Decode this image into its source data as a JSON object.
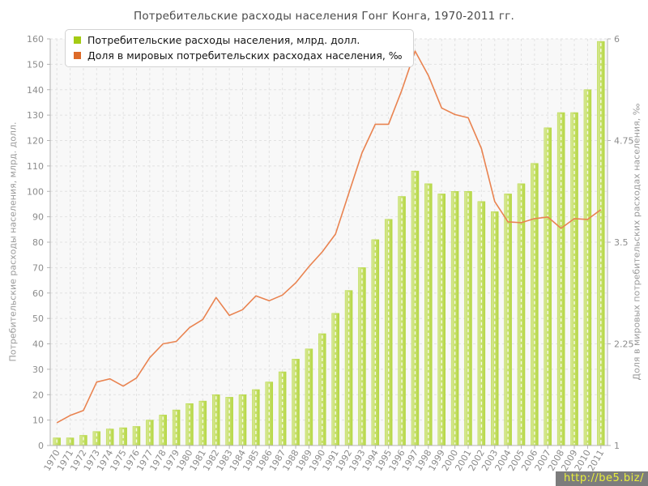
{
  "title": "Потребительские расходы населения Гонг Конга, 1970-2011 гг.",
  "legend": [
    {
      "label": "Потребительские расходы населения, млрд. долл.",
      "color": "#a4cb14"
    },
    {
      "label": "Доля в мировых потребительских расходах населения, ‰",
      "color": "#dd6a28"
    }
  ],
  "watermark": {
    "text": "http://be5.biz/",
    "bg": "#7c7c7c",
    "fg": "#e9ef3c"
  },
  "chart_data": {
    "type": "bar+line",
    "title": "Потребительские расходы населения Гонг Конга, 1970-2011 гг.",
    "categories": [
      1970,
      1971,
      1972,
      1973,
      1974,
      1975,
      1976,
      1977,
      1978,
      1979,
      1980,
      1981,
      1982,
      1983,
      1984,
      1985,
      1986,
      1987,
      1988,
      1989,
      1990,
      1991,
      1992,
      1993,
      1994,
      1995,
      1996,
      1997,
      1998,
      1999,
      2000,
      2001,
      2002,
      2003,
      2004,
      2005,
      2006,
      2007,
      2008,
      2009,
      2010,
      2011
    ],
    "series": [
      {
        "name": "Потребительские расходы населения, млрд. долл.",
        "type": "bar",
        "axis": "left",
        "color": "#b5d743",
        "color_light": "#d8e995",
        "values": [
          3,
          3,
          4,
          5.5,
          6.5,
          7,
          7.5,
          10,
          12,
          14,
          16.5,
          17.5,
          20,
          19,
          20,
          22,
          25,
          29,
          34,
          38,
          44,
          52,
          61,
          70,
          81,
          89,
          98,
          108,
          103,
          99,
          100,
          100,
          96,
          92,
          99,
          103,
          111,
          125,
          131,
          131,
          140,
          159
        ]
      },
      {
        "name": "Доля в мировых потребительских расходах населения, ‰",
        "type": "line",
        "axis": "right",
        "color": "#e98350",
        "values": [
          1.28,
          1.37,
          1.43,
          1.78,
          1.82,
          1.73,
          1.83,
          2.08,
          2.25,
          2.28,
          2.45,
          2.55,
          2.82,
          2.6,
          2.67,
          2.84,
          2.78,
          2.85,
          3.0,
          3.2,
          3.38,
          3.6,
          4.1,
          4.6,
          4.95,
          4.95,
          5.37,
          5.85,
          5.55,
          5.15,
          5.07,
          5.03,
          4.65,
          4.0,
          3.75,
          3.74,
          3.79,
          3.81,
          3.67,
          3.79,
          3.78,
          3.9
        ]
      }
    ],
    "left_axis": {
      "title": "Потребительские расходы населения, млрд. долл.",
      "min": 0,
      "max": 160,
      "step": 10
    },
    "right_axis": {
      "title": "Доля в мировых потребительских расходах населения, ‰",
      "min": 1,
      "max": 6,
      "ticks": [
        1,
        2.25,
        3.5,
        4.75,
        6
      ]
    },
    "grid": true,
    "legend_position": "top-left",
    "colors": {
      "plot_bg": "#f8f8f8",
      "grid": "#e2e2e2",
      "axis": "#b3b3b3",
      "text": "#8c8c8c",
      "bar_stripe": "#ffffff"
    }
  }
}
